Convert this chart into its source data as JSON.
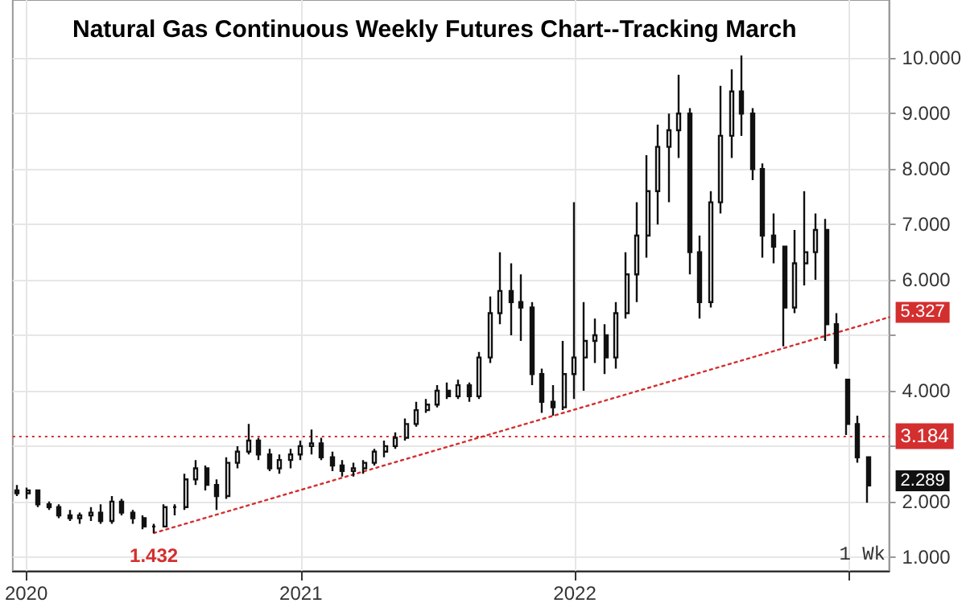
{
  "chart_data": {
    "type": "candlestick",
    "title": "Natural Gas Continuous Weekly Futures Chart--Tracking March",
    "color": "#111111",
    "x": [
      "2019-12-20",
      "2020-01-03",
      "2020-01-17",
      "2020-01-31",
      "2020-02-14",
      "2020-02-28",
      "2020-03-13",
      "2020-03-27",
      "2020-04-10",
      "2020-04-24",
      "2020-05-08",
      "2020-05-22",
      "2020-06-05",
      "2020-06-19",
      "2020-07-03",
      "2020-07-17",
      "2020-07-31",
      "2020-08-14",
      "2020-08-28",
      "2020-09-11",
      "2020-09-25",
      "2020-10-09",
      "2020-10-23",
      "2020-11-06",
      "2020-11-20",
      "2020-12-04",
      "2020-12-18",
      "2021-01-01",
      "2021-01-15",
      "2021-01-29",
      "2021-02-12",
      "2021-02-26",
      "2021-03-12",
      "2021-03-26",
      "2021-04-09",
      "2021-04-23",
      "2021-05-07",
      "2021-05-21",
      "2021-06-04",
      "2021-06-18",
      "2021-07-02",
      "2021-07-16",
      "2021-07-30",
      "2021-08-13",
      "2021-08-27",
      "2021-09-10",
      "2021-09-24",
      "2021-10-08",
      "2021-10-22",
      "2021-11-05",
      "2021-11-19",
      "2021-12-03",
      "2021-12-17",
      "2021-12-31",
      "2022-01-14",
      "2022-01-28",
      "2022-02-11",
      "2022-02-25",
      "2022-03-11",
      "2022-03-25",
      "2022-04-08",
      "2022-04-22",
      "2022-05-06",
      "2022-05-20",
      "2022-06-03",
      "2022-06-17",
      "2022-07-01",
      "2022-07-15",
      "2022-07-29",
      "2022-08-12",
      "2022-08-26",
      "2022-09-09",
      "2022-09-23",
      "2022-10-07",
      "2022-10-21",
      "2022-11-04",
      "2022-11-18",
      "2022-12-02",
      "2022-12-16",
      "2022-12-30",
      "2023-01-13",
      "2023-01-27"
    ],
    "ohlc": [
      [
        2.2,
        2.3,
        2.1,
        2.15
      ],
      [
        2.15,
        2.25,
        2.05,
        2.2
      ],
      [
        2.2,
        2.22,
        1.9,
        1.95
      ],
      [
        1.95,
        2.0,
        1.85,
        1.9
      ],
      [
        1.9,
        1.95,
        1.7,
        1.75
      ],
      [
        1.75,
        1.85,
        1.65,
        1.7
      ],
      [
        1.7,
        1.8,
        1.6,
        1.75
      ],
      [
        1.75,
        1.9,
        1.65,
        1.8
      ],
      [
        1.8,
        1.95,
        1.6,
        1.65
      ],
      [
        1.65,
        2.1,
        1.6,
        2.0
      ],
      [
        2.0,
        2.05,
        1.75,
        1.8
      ],
      [
        1.8,
        1.85,
        1.6,
        1.7
      ],
      [
        1.7,
        1.75,
        1.5,
        1.55
      ],
      [
        1.55,
        1.6,
        1.432,
        1.55
      ],
      [
        1.55,
        1.95,
        1.55,
        1.9
      ],
      [
        1.9,
        1.95,
        1.75,
        1.9
      ],
      [
        1.9,
        2.5,
        1.85,
        2.4
      ],
      [
        2.4,
        2.75,
        2.3,
        2.6
      ],
      [
        2.6,
        2.65,
        2.2,
        2.3
      ],
      [
        2.3,
        2.4,
        1.85,
        2.1
      ],
      [
        2.1,
        2.8,
        2.05,
        2.7
      ],
      [
        2.7,
        3.0,
        2.6,
        2.9
      ],
      [
        2.9,
        3.4,
        2.85,
        3.1
      ],
      [
        3.1,
        3.15,
        2.75,
        2.85
      ],
      [
        2.85,
        2.95,
        2.55,
        2.6
      ],
      [
        2.6,
        2.85,
        2.5,
        2.75
      ],
      [
        2.75,
        2.95,
        2.6,
        2.85
      ],
      [
        2.85,
        3.1,
        2.75,
        3.0
      ],
      [
        3.0,
        3.3,
        2.85,
        3.05
      ],
      [
        3.05,
        3.15,
        2.75,
        2.8
      ],
      [
        2.8,
        2.9,
        2.55,
        2.65
      ],
      [
        2.65,
        2.75,
        2.45,
        2.55
      ],
      [
        2.55,
        2.7,
        2.45,
        2.6
      ],
      [
        2.6,
        2.75,
        2.5,
        2.7
      ],
      [
        2.7,
        2.95,
        2.65,
        2.9
      ],
      [
        2.9,
        3.1,
        2.8,
        3.0
      ],
      [
        3.0,
        3.25,
        2.95,
        3.15
      ],
      [
        3.15,
        3.5,
        3.1,
        3.4
      ],
      [
        3.4,
        3.8,
        3.35,
        3.65
      ],
      [
        3.65,
        3.85,
        3.6,
        3.75
      ],
      [
        3.75,
        4.1,
        3.7,
        4.0
      ],
      [
        4.0,
        4.15,
        3.85,
        3.9
      ],
      [
        3.9,
        4.2,
        3.85,
        4.1
      ],
      [
        4.1,
        4.15,
        3.8,
        3.9
      ],
      [
        3.9,
        4.7,
        3.85,
        4.6
      ],
      [
        4.6,
        5.7,
        4.5,
        5.4
      ],
      [
        5.4,
        6.5,
        5.2,
        5.8
      ],
      [
        5.8,
        6.3,
        5.0,
        5.6
      ],
      [
        5.6,
        6.1,
        4.9,
        5.5
      ],
      [
        5.5,
        5.6,
        4.1,
        4.3
      ],
      [
        4.3,
        4.4,
        3.6,
        3.8
      ],
      [
        3.8,
        4.1,
        3.55,
        3.7
      ],
      [
        3.7,
        4.9,
        3.65,
        4.3
      ],
      [
        4.3,
        7.4,
        3.85,
        4.6
      ],
      [
        4.6,
        5.6,
        4.0,
        4.9
      ],
      [
        4.9,
        5.3,
        4.5,
        5.0
      ],
      [
        5.0,
        5.2,
        4.3,
        4.6
      ],
      [
        4.6,
        5.6,
        4.4,
        5.4
      ],
      [
        5.4,
        6.5,
        5.3,
        6.1
      ],
      [
        6.1,
        7.4,
        5.6,
        6.8
      ],
      [
        6.8,
        8.25,
        6.4,
        7.6
      ],
      [
        7.6,
        8.8,
        7.0,
        8.4
      ],
      [
        8.4,
        9.0,
        7.4,
        8.7
      ],
      [
        8.7,
        9.7,
        8.2,
        9.0
      ],
      [
        9.0,
        9.1,
        6.1,
        6.5
      ],
      [
        6.5,
        6.8,
        5.3,
        5.6
      ],
      [
        5.6,
        7.6,
        5.5,
        7.4
      ],
      [
        7.4,
        9.5,
        7.2,
        8.6
      ],
      [
        8.6,
        9.8,
        8.2,
        9.4
      ],
      [
        9.4,
        10.05,
        8.6,
        9.0
      ],
      [
        9.0,
        9.1,
        7.8,
        8.0
      ],
      [
        8.0,
        8.1,
        6.4,
        6.8
      ],
      [
        6.8,
        7.2,
        6.3,
        6.6
      ],
      [
        6.6,
        6.6,
        4.8,
        5.5
      ],
      [
        5.5,
        6.9,
        5.4,
        6.3
      ],
      [
        6.3,
        7.6,
        5.9,
        6.5
      ],
      [
        6.5,
        7.2,
        6.0,
        6.9
      ],
      [
        6.9,
        7.1,
        4.9,
        5.2
      ],
      [
        5.2,
        5.4,
        4.4,
        4.5
      ],
      [
        4.2,
        4.2,
        3.2,
        3.4
      ],
      [
        3.4,
        3.55,
        2.7,
        2.8
      ],
      [
        2.8,
        2.8,
        1.98,
        2.289
      ]
    ],
    "series": [
      {
        "type": "line",
        "x": [
          "2020-06-19",
          "2023-02-24"
        ],
        "values": [
          1.432,
          5.327
        ],
        "color": "#d32f2f",
        "line_style": "dotted",
        "marker": "none"
      }
    ],
    "xlim": [
      "2019-12-14",
      "2023-02-24"
    ],
    "xticks": [
      {
        "value": "2020-01-01",
        "label": "2020"
      },
      {
        "value": "2021-01-01",
        "label": "2021"
      },
      {
        "value": "2022-01-01",
        "label": "2022"
      },
      {
        "value": "2023-01-01",
        "label": null
      }
    ],
    "ylim": [
      0.75,
      11.05
    ],
    "yticks": [
      {
        "value": 1,
        "label": "1.000"
      },
      {
        "value": 2,
        "label": "2.000"
      },
      {
        "value": 3,
        "label": null
      },
      {
        "value": 4,
        "label": "4.000"
      },
      {
        "value": 5,
        "label": null
      },
      {
        "value": 6,
        "label": "6.000"
      },
      {
        "value": 7,
        "label": "7.000"
      },
      {
        "value": 8,
        "label": "8.000"
      },
      {
        "value": 9,
        "label": "9.000"
      },
      {
        "value": 10,
        "label": "10.000"
      }
    ],
    "ref_lines": [
      {
        "axis": "y",
        "value": 3.184,
        "label": "3.184",
        "color": "#d32f2f",
        "line_style": "dotted"
      }
    ],
    "annotations": [
      {
        "text": "1.432",
        "x": "2020-06-19",
        "y": 1.432
      },
      {
        "text": "5.327",
        "x": "2023-02-24",
        "y": 5.327
      },
      {
        "text": "2.289",
        "x": "2023-01-27",
        "y": 2.289
      },
      "1 Wk"
    ],
    "grid": true
  }
}
